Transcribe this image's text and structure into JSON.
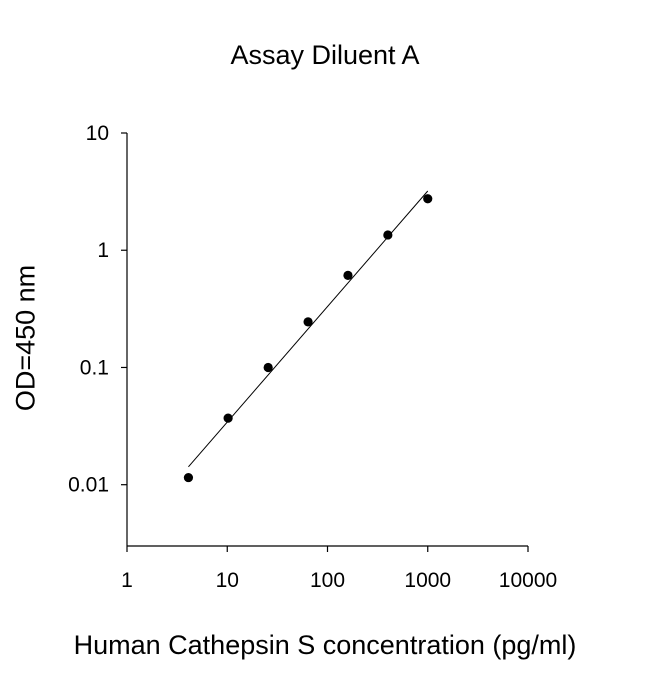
{
  "chart_data": {
    "type": "scatter",
    "title": "Assay Diluent A",
    "xlabel": "Human Cathepsin S concentration (pg/ml)",
    "ylabel": "OD=450 nm",
    "x_scale": "log",
    "y_scale": "log",
    "xlim": [
      1,
      10000
    ],
    "ylim": [
      0.003,
      10
    ],
    "x_ticks": [
      1,
      10,
      100,
      1000,
      10000
    ],
    "x_tick_labels": [
      "1",
      "10",
      "100",
      "1000",
      "10000"
    ],
    "y_ticks": [
      0.01,
      0.1,
      1,
      10
    ],
    "y_tick_labels": [
      "0.01",
      "0.1",
      "1",
      "10"
    ],
    "grid": false,
    "legend": "none",
    "series": [
      {
        "x": [
          4.1,
          10.2,
          25.6,
          64,
          160,
          400,
          1000
        ],
        "y": [
          0.0115,
          0.037,
          0.1,
          0.245,
          0.61,
          1.35,
          2.75
        ],
        "marker_color": "#000000"
      }
    ],
    "fit_line": {
      "x": [
        4.1,
        1000
      ],
      "y": [
        0.0142,
        3.2
      ],
      "color": "#000000"
    }
  }
}
